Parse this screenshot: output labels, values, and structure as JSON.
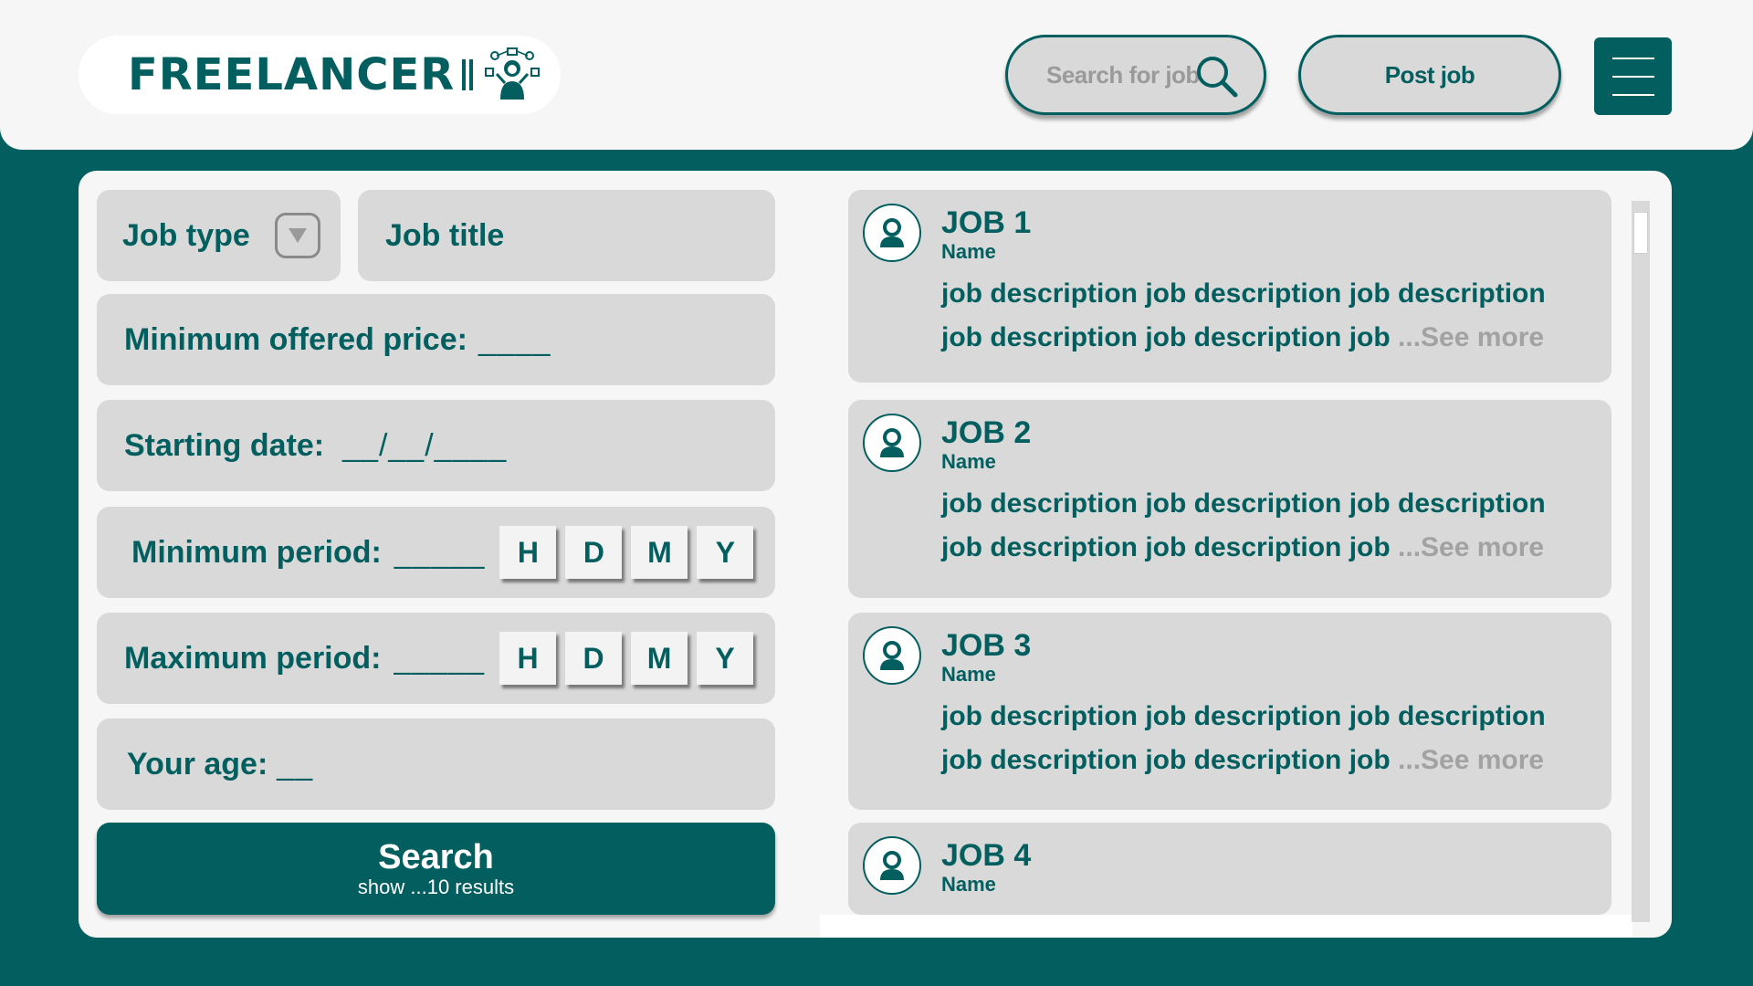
{
  "header": {
    "logo_text": "FREELANCER",
    "search_placeholder": "Search for job",
    "post_job_label": "Post job"
  },
  "filters": {
    "job_type_label": "Job type",
    "job_title_label": "Job title",
    "min_price_label": "Minimum offered price:",
    "min_price_value": "____",
    "start_date_label": "Starting date:",
    "start_date_value": "__/__/____",
    "min_period_label": "Minimum period:",
    "min_period_value": "_____",
    "max_period_label": "Maximum period:",
    "max_period_value": "_____",
    "units": [
      "H",
      "D",
      "M",
      "Y"
    ],
    "age_label": "Your age:",
    "age_value": "__"
  },
  "search_button": {
    "label": "Search",
    "sublabel": "show ...10 results"
  },
  "jobs": [
    {
      "title": "JOB 1",
      "name": "Name",
      "description": "job description job description job description job description job description job",
      "more": "...See more"
    },
    {
      "title": "JOB 2",
      "name": "Name",
      "description": "job description job description job description job description job description job",
      "more": "...See more"
    },
    {
      "title": "JOB 3",
      "name": "Name",
      "description": "job description job description job description job description job description job",
      "more": "...See more"
    },
    {
      "title": "JOB 4",
      "name": "Name"
    }
  ],
  "colors": {
    "primary": "#035f5f",
    "field_bg": "#d9d9d9",
    "panel_bg": "#f6f6f6",
    "muted": "#a2a2a2"
  },
  "icons": [
    "search-icon",
    "dropdown-icon",
    "menu-icon",
    "user-icon",
    "freelancer-logo-icon"
  ]
}
